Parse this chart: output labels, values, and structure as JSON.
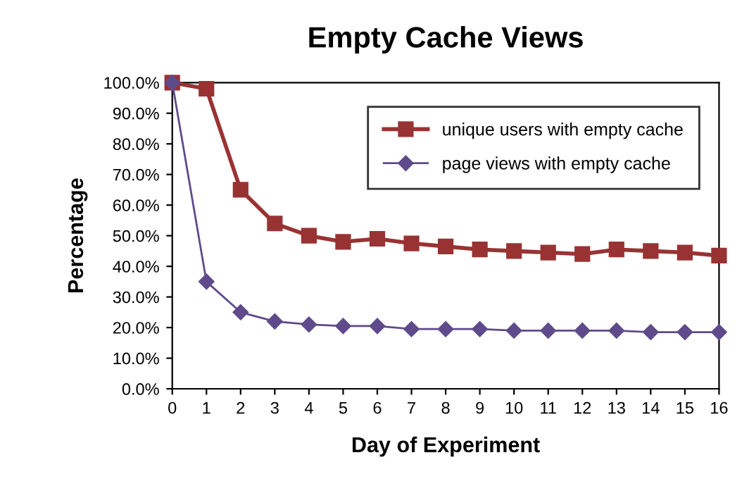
{
  "chart_data": {
    "type": "line",
    "title": "Empty Cache Views",
    "xlabel": "Day of Experiment",
    "ylabel": "Percentage",
    "x": [
      0,
      1,
      2,
      3,
      4,
      5,
      6,
      7,
      8,
      9,
      10,
      11,
      12,
      13,
      14,
      15,
      16
    ],
    "series": [
      {
        "name": "unique users with empty cache",
        "color": "#993333",
        "marker": "square",
        "values": [
          100,
          98,
          65,
          54,
          50,
          48,
          49,
          47.5,
          46.5,
          45.5,
          45,
          44.5,
          44,
          45.5,
          45,
          44.5,
          43.5
        ]
      },
      {
        "name": "page views with empty cache",
        "color": "#5f4b8b",
        "marker": "diamond",
        "values": [
          100,
          35,
          25,
          22,
          21,
          20.5,
          20.5,
          19.5,
          19.5,
          19.5,
          19,
          19,
          19,
          19,
          18.5,
          18.5,
          18.5
        ]
      }
    ],
    "xlim": [
      0,
      16
    ],
    "xticks": [
      0,
      1,
      2,
      3,
      4,
      5,
      6,
      7,
      8,
      9,
      10,
      11,
      12,
      13,
      14,
      15,
      16
    ],
    "ylim": [
      0,
      100
    ],
    "yticks": [
      {
        "value": 0,
        "label": "0.0%"
      },
      {
        "value": 10,
        "label": "10.0%"
      },
      {
        "value": 20,
        "label": "20.0%"
      },
      {
        "value": 30,
        "label": "30.0%"
      },
      {
        "value": 40,
        "label": "40.0%"
      },
      {
        "value": 50,
        "label": "50.0%"
      },
      {
        "value": 60,
        "label": "60.0%"
      },
      {
        "value": 70,
        "label": "70.0%"
      },
      {
        "value": 80,
        "label": "80.0%"
      },
      {
        "value": 90,
        "label": "90.0%"
      },
      {
        "value": 100,
        "label": "100.0%"
      }
    ],
    "grid": false,
    "legend": "top right",
    "line_style": "solid"
  }
}
